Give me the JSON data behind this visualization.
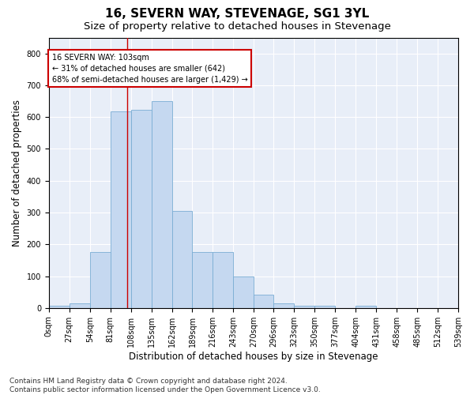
{
  "title": "16, SEVERN WAY, STEVENAGE, SG1 3YL",
  "subtitle": "Size of property relative to detached houses in Stevenage",
  "xlabel": "Distribution of detached houses by size in Stevenage",
  "ylabel": "Number of detached properties",
  "bar_counts": [
    8,
    14,
    175,
    618,
    622,
    650,
    305,
    175,
    175,
    100,
    42,
    14,
    8,
    6,
    0,
    8,
    0,
    0,
    0,
    0
  ],
  "bin_edges": [
    0,
    27,
    54,
    81,
    108,
    135,
    162,
    189,
    216,
    243,
    270,
    296,
    323,
    350,
    377,
    404,
    431,
    458,
    485,
    512,
    539
  ],
  "tick_labels": [
    "0sqm",
    "27sqm",
    "54sqm",
    "81sqm",
    "108sqm",
    "135sqm",
    "162sqm",
    "189sqm",
    "216sqm",
    "243sqm",
    "270sqm",
    "296sqm",
    "323sqm",
    "350sqm",
    "377sqm",
    "404sqm",
    "431sqm",
    "458sqm",
    "485sqm",
    "512sqm",
    "539sqm"
  ],
  "bar_color": "#c5d8f0",
  "bar_edge_color": "#7aadd4",
  "property_line_x": 103,
  "property_line_color": "#cc0000",
  "annotation_text": "16 SEVERN WAY: 103sqm\n← 31% of detached houses are smaller (642)\n68% of semi-detached houses are larger (1,429) →",
  "annotation_box_color": "#ffffff",
  "annotation_box_edge": "#cc0000",
  "ylim": [
    0,
    850
  ],
  "yticks": [
    0,
    100,
    200,
    300,
    400,
    500,
    600,
    700,
    800
  ],
  "background_color": "#e8eef8",
  "grid_color": "#ffffff",
  "footer_text": "Contains HM Land Registry data © Crown copyright and database right 2024.\nContains public sector information licensed under the Open Government Licence v3.0.",
  "title_fontsize": 11,
  "subtitle_fontsize": 9.5,
  "xlabel_fontsize": 8.5,
  "ylabel_fontsize": 8.5,
  "tick_fontsize": 7,
  "footer_fontsize": 6.5
}
